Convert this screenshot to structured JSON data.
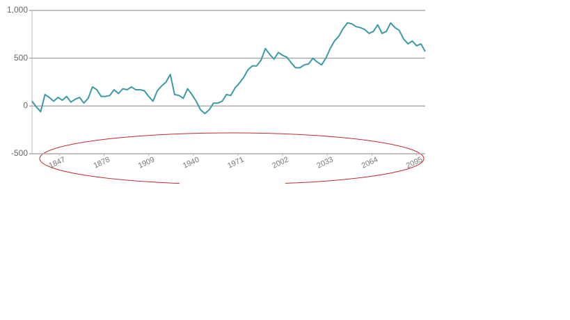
{
  "chart_data": {
    "type": "line",
    "x": [
      1828,
      1831,
      1834,
      1837,
      1840,
      1843,
      1846,
      1849,
      1852,
      1855,
      1858,
      1861,
      1864,
      1867,
      1870,
      1873,
      1876,
      1879,
      1882,
      1885,
      1888,
      1891,
      1894,
      1897,
      1900,
      1903,
      1906,
      1909,
      1912,
      1915,
      1918,
      1921,
      1924,
      1927,
      1930,
      1933,
      1936,
      1939,
      1942,
      1945,
      1948,
      1951,
      1954,
      1957,
      1960,
      1963,
      1966,
      1969,
      1972,
      1975,
      1978,
      1981,
      1984,
      1987,
      1990,
      1993,
      1996,
      1999,
      2002,
      2005,
      2008,
      2011,
      2014,
      2017,
      2020,
      2023,
      2026,
      2029,
      2032,
      2035,
      2038,
      2041,
      2044,
      2047,
      2050,
      2053,
      2056,
      2059,
      2062,
      2065,
      2068,
      2071,
      2074,
      2077,
      2080,
      2083,
      2086,
      2089,
      2092,
      2095,
      2098,
      2101
    ],
    "series": [
      {
        "color": "#3a9aa5",
        "values": [
          50,
          -10,
          -60,
          120,
          90,
          50,
          90,
          60,
          100,
          40,
          70,
          90,
          30,
          80,
          200,
          170,
          100,
          100,
          110,
          170,
          130,
          180,
          170,
          200,
          170,
          170,
          160,
          100,
          50,
          160,
          210,
          250,
          330,
          120,
          110,
          80,
          180,
          120,
          50,
          -40,
          -80,
          -40,
          30,
          30,
          50,
          120,
          110,
          190,
          240,
          300,
          380,
          420,
          420,
          480,
          600,
          540,
          490,
          560,
          530,
          510,
          450,
          400,
          400,
          430,
          440,
          500,
          460,
          430,
          500,
          600,
          680,
          730,
          810,
          870,
          860,
          830,
          820,
          800,
          760,
          780,
          850,
          760,
          780,
          870,
          820,
          790,
          700,
          650,
          680,
          630,
          650,
          570
        ]
      }
    ],
    "xlim": [
      1828,
      2101
    ],
    "xticks": [
      1847,
      1878,
      1909,
      1940,
      1971,
      2002,
      2033,
      2064,
      2095
    ],
    "ylim": [
      -500,
      1000
    ],
    "yticks": [
      -500,
      0,
      500,
      {
        "value": 1000,
        "label": "1,000"
      }
    ],
    "grid": true
  }
}
